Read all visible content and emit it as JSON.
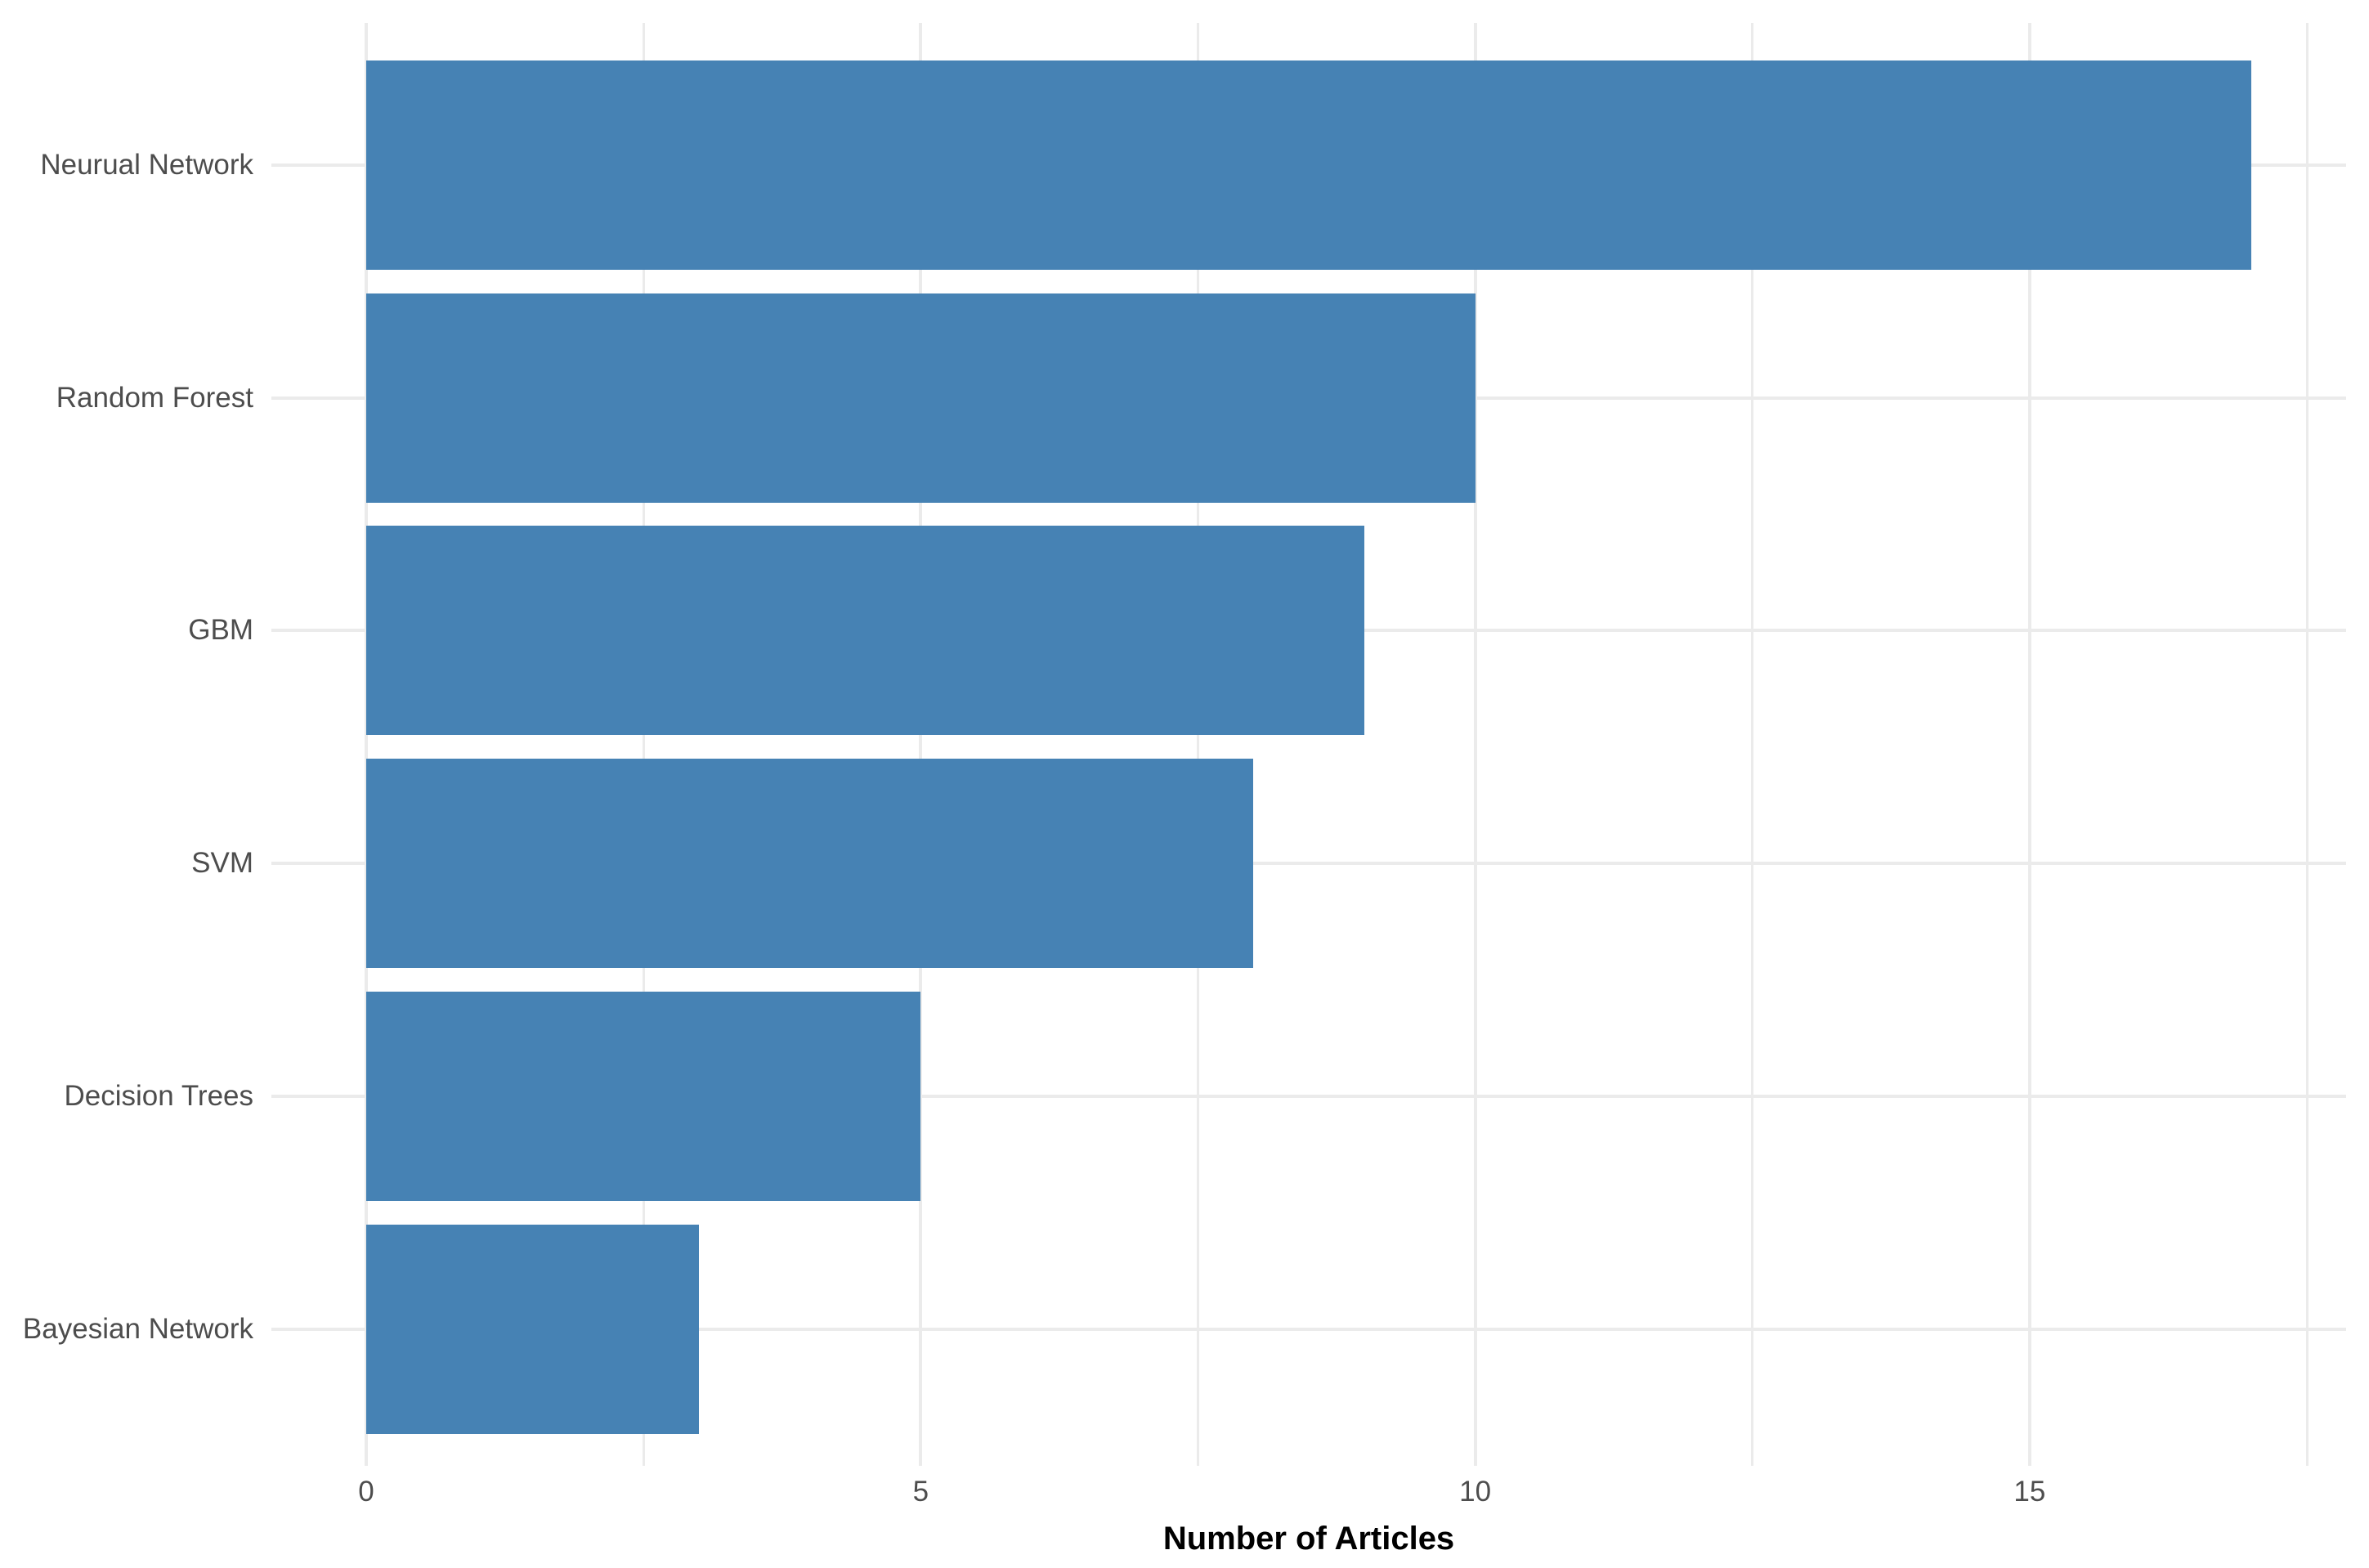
{
  "chart_data": {
    "type": "bar",
    "orientation": "horizontal",
    "title": "",
    "xlabel": "Number of Articles",
    "ylabel": "",
    "categories": [
      "Neurual Network",
      "Random Forest",
      "GBM",
      "SVM",
      "Decision Trees",
      "Bayesian Network"
    ],
    "values": [
      17,
      10,
      9,
      8,
      5,
      3
    ],
    "xlim": [
      0,
      17.85
    ],
    "x_ticks": {
      "major": [
        0,
        5,
        10,
        15
      ],
      "labels": [
        "0",
        "5",
        "10",
        "15"
      ],
      "minor": [
        2.5,
        7.5,
        12.5,
        17.5
      ]
    },
    "grid": "on",
    "legend": "none",
    "colors": {
      "bar": "#4682B4",
      "grid": "#EBEBEB",
      "axis_text": "#4D4D4D",
      "axis_title": "#000000",
      "background": "#FFFFFF"
    }
  }
}
